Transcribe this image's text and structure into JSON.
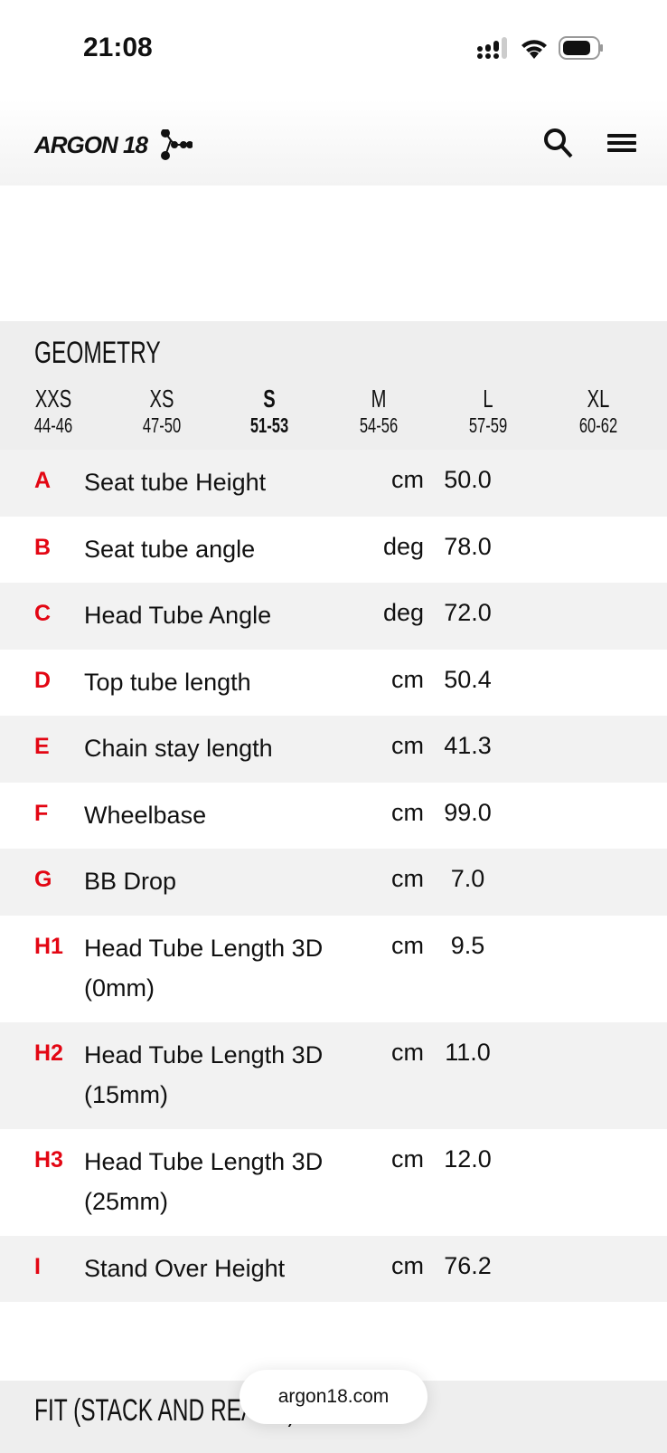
{
  "status_bar": {
    "time": "21:08"
  },
  "header": {
    "logo": "ARGON 18"
  },
  "geometry": {
    "title": "GEOMETRY",
    "sizes": [
      {
        "name": "XXS",
        "range": "44-46",
        "selected": false
      },
      {
        "name": "XS",
        "range": "47-50",
        "selected": false
      },
      {
        "name": "S",
        "range": "51-53",
        "selected": true
      },
      {
        "name": "M",
        "range": "54-56",
        "selected": false
      },
      {
        "name": "L",
        "range": "57-59",
        "selected": false
      },
      {
        "name": "XL",
        "range": "60-62",
        "selected": false
      }
    ],
    "rows": [
      {
        "letter": "A",
        "name": "Seat tube Height",
        "unit": "cm",
        "value": "50.0"
      },
      {
        "letter": "B",
        "name": "Seat tube angle",
        "unit": "deg",
        "value": "78.0"
      },
      {
        "letter": "C",
        "name": "Head Tube Angle",
        "unit": "deg",
        "value": "72.0"
      },
      {
        "letter": "D",
        "name": "Top tube length",
        "unit": "cm",
        "value": "50.4"
      },
      {
        "letter": "E",
        "name": "Chain stay length",
        "unit": "cm",
        "value": "41.3"
      },
      {
        "letter": "F",
        "name": "Wheelbase",
        "unit": "cm",
        "value": "99.0"
      },
      {
        "letter": "G",
        "name": "BB Drop",
        "unit": "cm",
        "value": "7.0"
      },
      {
        "letter": "H1",
        "name": "Head Tube Length 3D (0mm)",
        "unit": "cm",
        "value": "9.5"
      },
      {
        "letter": "H2",
        "name": "Head Tube Length 3D (15mm)",
        "unit": "cm",
        "value": "11.0"
      },
      {
        "letter": "H3",
        "name": "Head Tube Length 3D (25mm)",
        "unit": "cm",
        "value": "12.0"
      },
      {
        "letter": "I",
        "name": "Stand Over Height",
        "unit": "cm",
        "value": "76.2"
      }
    ]
  },
  "fit": {
    "title": "FIT (STACK AND REACH)"
  },
  "url_pill": "argon18.com",
  "colors": {
    "accent": "#e30613"
  }
}
